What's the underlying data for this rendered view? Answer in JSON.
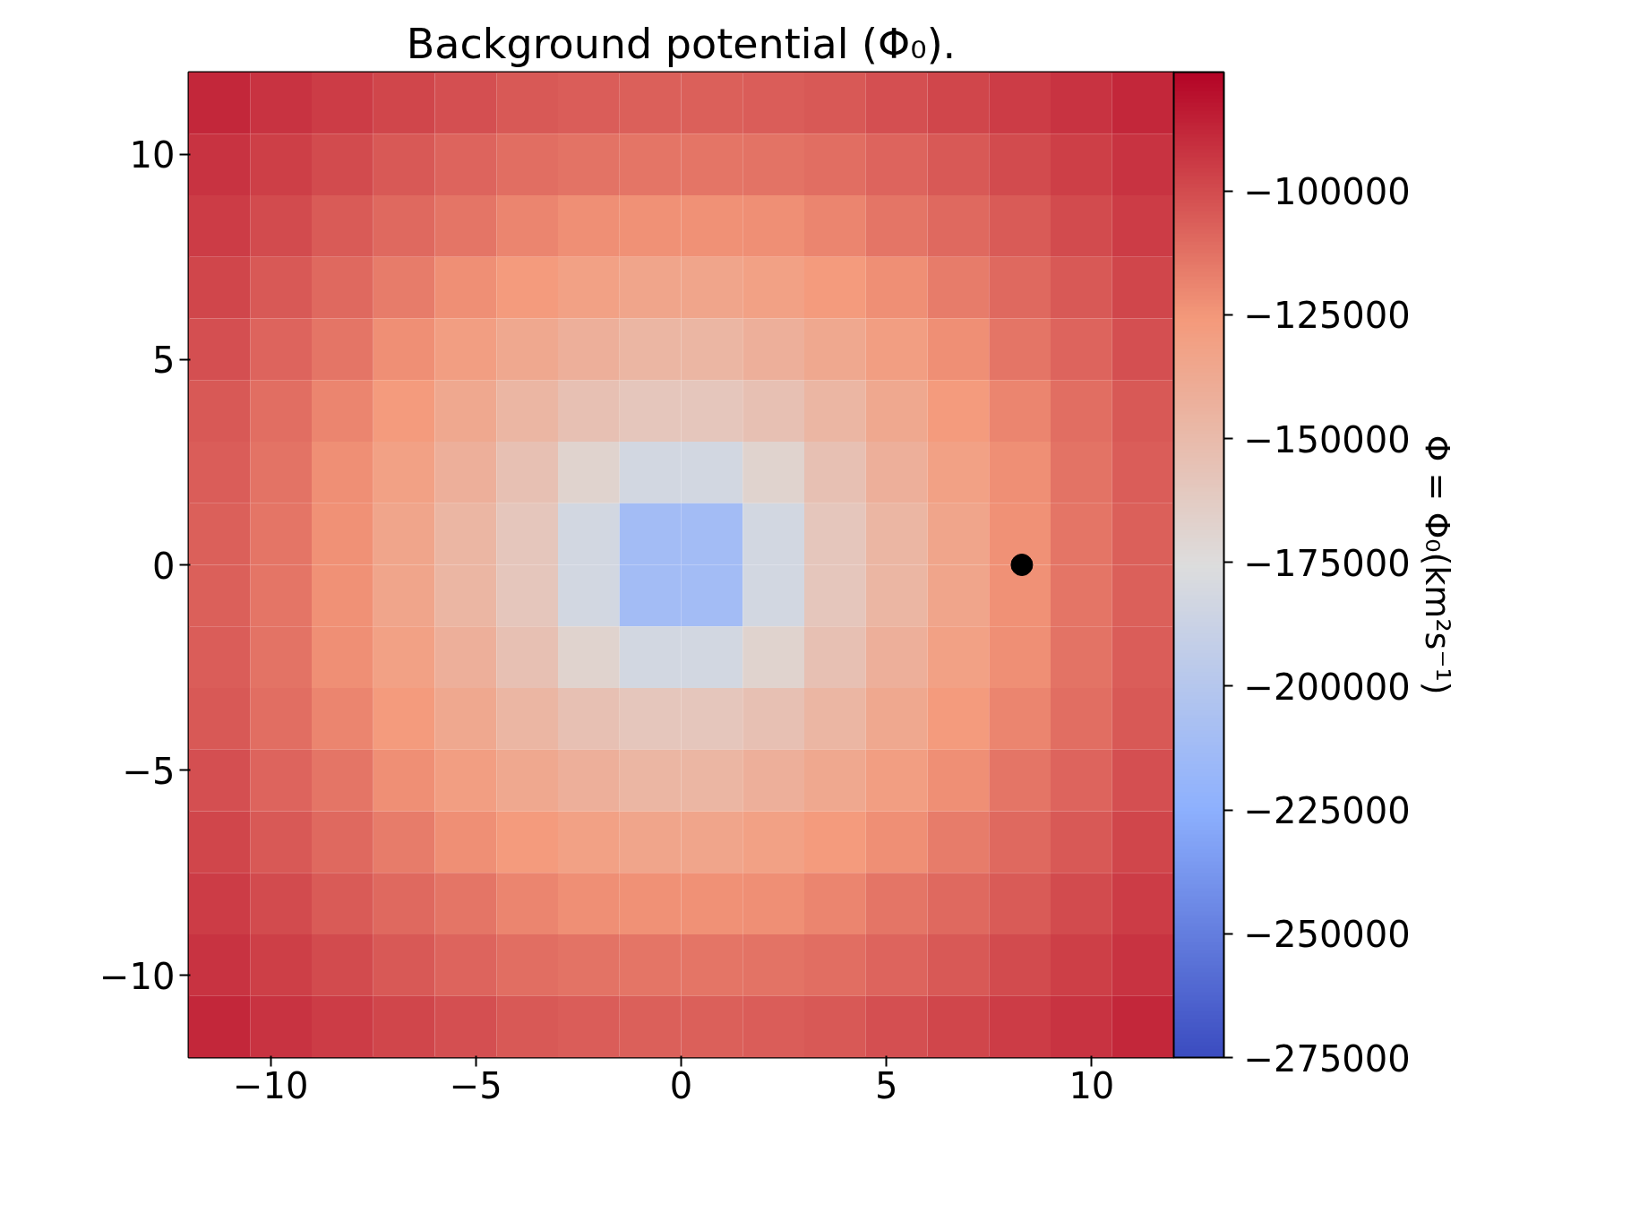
{
  "chart_data": {
    "type": "heatmap",
    "title": "Background potential (Φ₀).",
    "clabel": "Φ = Φ₀(km²s⁻¹)",
    "x": [
      -11.25,
      -9.75,
      -8.25,
      -6.75,
      -5.25,
      -3.75,
      -2.25,
      -0.75,
      0.75,
      2.25,
      3.75,
      5.25,
      6.75,
      8.25,
      9.75,
      11.25
    ],
    "y": [
      11.25,
      9.75,
      8.25,
      6.75,
      5.25,
      3.75,
      2.25,
      0.75,
      -0.75,
      -2.25,
      -3.75,
      -5.25,
      -6.75,
      -8.25,
      -9.75,
      -11.25
    ],
    "cells": [
      [
        -88000,
        -92000,
        -95000,
        -98000,
        -101000,
        -104000,
        -106000,
        -107000,
        -107000,
        -106000,
        -104000,
        -101000,
        -98000,
        -95000,
        -92000,
        -88000
      ],
      [
        -92000,
        -96000,
        -100000,
        -104000,
        -108000,
        -111000,
        -113000,
        -114000,
        -114000,
        -113000,
        -111000,
        -108000,
        -104000,
        -100000,
        -96000,
        -92000
      ],
      [
        -95000,
        -100000,
        -105000,
        -110000,
        -114000,
        -119000,
        -122000,
        -123000,
        -123000,
        -122000,
        -119000,
        -114000,
        -110000,
        -105000,
        -100000,
        -95000
      ],
      [
        -98000,
        -104000,
        -110000,
        -116000,
        -122000,
        -127000,
        -131000,
        -134000,
        -134000,
        -131000,
        -127000,
        -122000,
        -116000,
        -110000,
        -104000,
        -98000
      ],
      [
        -101000,
        -108000,
        -114000,
        -122000,
        -129000,
        -136000,
        -142000,
        -146000,
        -146000,
        -142000,
        -136000,
        -129000,
        -122000,
        -114000,
        -108000,
        -101000
      ],
      [
        -104000,
        -111000,
        -119000,
        -127000,
        -136000,
        -146000,
        -154000,
        -159000,
        -159000,
        -154000,
        -146000,
        -136000,
        -127000,
        -119000,
        -111000,
        -104000
      ],
      [
        -106000,
        -113000,
        -122000,
        -131000,
        -142000,
        -154000,
        -168000,
        -182000,
        -182000,
        -168000,
        -154000,
        -142000,
        -131000,
        -122000,
        -113000,
        -106000
      ],
      [
        -107000,
        -114000,
        -123000,
        -134000,
        -146000,
        -159000,
        -182000,
        -212000,
        -212000,
        -182000,
        -159000,
        -146000,
        -134000,
        -123000,
        -114000,
        -107000
      ],
      [
        -107000,
        -114000,
        -123000,
        -134000,
        -146000,
        -159000,
        -182000,
        -212000,
        -212000,
        -182000,
        -159000,
        -146000,
        -134000,
        -123000,
        -114000,
        -107000
      ],
      [
        -106000,
        -113000,
        -122000,
        -131000,
        -142000,
        -154000,
        -168000,
        -182000,
        -182000,
        -168000,
        -154000,
        -142000,
        -131000,
        -122000,
        -113000,
        -106000
      ],
      [
        -104000,
        -111000,
        -119000,
        -127000,
        -136000,
        -146000,
        -154000,
        -159000,
        -159000,
        -154000,
        -146000,
        -136000,
        -127000,
        -119000,
        -111000,
        -104000
      ],
      [
        -101000,
        -108000,
        -114000,
        -122000,
        -129000,
        -136000,
        -142000,
        -146000,
        -146000,
        -142000,
        -136000,
        -129000,
        -122000,
        -114000,
        -108000,
        -101000
      ],
      [
        -98000,
        -104000,
        -110000,
        -116000,
        -122000,
        -127000,
        -131000,
        -134000,
        -134000,
        -131000,
        -127000,
        -122000,
        -116000,
        -110000,
        -104000,
        -98000
      ],
      [
        -95000,
        -100000,
        -105000,
        -110000,
        -114000,
        -119000,
        -122000,
        -123000,
        -123000,
        -122000,
        -119000,
        -114000,
        -110000,
        -105000,
        -100000,
        -95000
      ],
      [
        -92000,
        -96000,
        -100000,
        -104000,
        -108000,
        -111000,
        -113000,
        -114000,
        -114000,
        -113000,
        -111000,
        -108000,
        -104000,
        -100000,
        -96000,
        -92000
      ],
      [
        -88000,
        -92000,
        -95000,
        -98000,
        -101000,
        -104000,
        -106000,
        -107000,
        -107000,
        -106000,
        -104000,
        -101000,
        -98000,
        -95000,
        -92000,
        -88000
      ]
    ],
    "xlim": [
      -12,
      12
    ],
    "ylim": [
      -12,
      12
    ],
    "xticks": [
      {
        "value": -10,
        "label": "−10"
      },
      {
        "value": -5,
        "label": "−5"
      },
      0,
      5,
      10
    ],
    "yticks": [
      {
        "value": -10,
        "label": "−10"
      },
      {
        "value": -5,
        "label": "−5"
      },
      0,
      5,
      10
    ],
    "clim": [
      -275000,
      -76000
    ],
    "cticks": [
      {
        "value": -275000,
        "label": "−275000"
      },
      {
        "value": -250000,
        "label": "−250000"
      },
      {
        "value": -225000,
        "label": "−225000"
      },
      {
        "value": -200000,
        "label": "−200000"
      },
      {
        "value": -175000,
        "label": "−175000"
      },
      {
        "value": -150000,
        "label": "−150000"
      },
      {
        "value": -125000,
        "label": "−125000"
      },
      {
        "value": -100000,
        "label": "−100000"
      }
    ],
    "series": [
      {
        "type": "scatter",
        "x": [
          8.3
        ],
        "values": [
          0
        ],
        "color": "#000000"
      }
    ],
    "marker": "circle"
  }
}
